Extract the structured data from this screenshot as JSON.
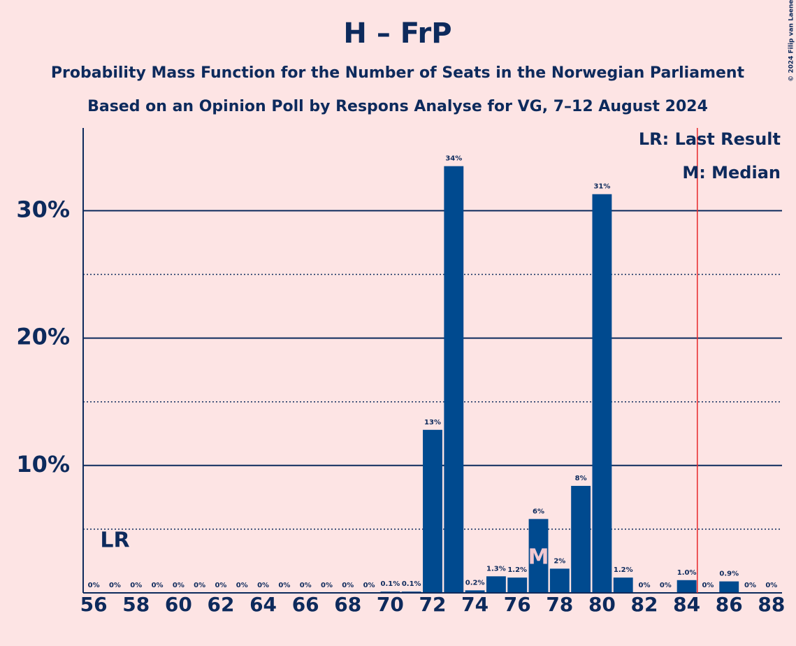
{
  "chart_data": {
    "type": "bar",
    "title": "H – FrP",
    "subtitle": "Probability Mass Function for the Number of Seats in the Norwegian Parliament",
    "subtitle2": "Based on an Opinion Poll by Respons Analyse for VG, 7–12 August 2024",
    "copyright": "© 2024 Filip van Laenen",
    "x": [
      56,
      57,
      58,
      59,
      60,
      61,
      62,
      63,
      64,
      65,
      66,
      67,
      68,
      69,
      70,
      71,
      72,
      73,
      74,
      75,
      76,
      77,
      78,
      79,
      80,
      81,
      82,
      83,
      84,
      85,
      86,
      87,
      88
    ],
    "values": [
      0,
      0,
      0,
      0,
      0,
      0,
      0,
      0,
      0,
      0,
      0,
      0,
      0,
      0,
      0.1,
      0.1,
      12.8,
      33.5,
      0.2,
      1.3,
      1.2,
      5.8,
      1.9,
      8.4,
      31.3,
      1.2,
      0,
      0,
      1.0,
      0,
      0.9,
      0,
      0
    ],
    "value_labels": [
      "0%",
      "0%",
      "0%",
      "0%",
      "0%",
      "0%",
      "0%",
      "0%",
      "0%",
      "0%",
      "0%",
      "0%",
      "0%",
      "0%",
      "0.1%",
      "0.1%",
      "13%",
      "34%",
      "0.2%",
      "1.3%",
      "1.2%",
      "6%",
      "2%",
      "8%",
      "31%",
      "1.2%",
      "0%",
      "0%",
      "1.0%",
      "0%",
      "0.9%",
      "0%",
      "0%"
    ],
    "color": "#004a8f",
    "xlim": [
      55.5,
      88.5
    ],
    "xticks": [
      56,
      58,
      60,
      62,
      64,
      66,
      68,
      70,
      72,
      74,
      76,
      78,
      80,
      82,
      84,
      86,
      88
    ],
    "ylim": [
      0,
      36.5
    ],
    "yticks": [
      {
        "value": 10,
        "label": "10%"
      },
      {
        "value": 20,
        "label": "20%"
      },
      {
        "value": 30,
        "label": "30%"
      }
    ],
    "minor_yticks": [
      5,
      15,
      25
    ],
    "grid": true,
    "majority_line": 84.5,
    "majority_color": "#e8282b",
    "last_result": 57,
    "last_result_label": "LR",
    "median": 77,
    "median_label": "M",
    "legend": "upper right",
    "legend_entries": [
      "LR: Last Result",
      "M: Median"
    ]
  }
}
